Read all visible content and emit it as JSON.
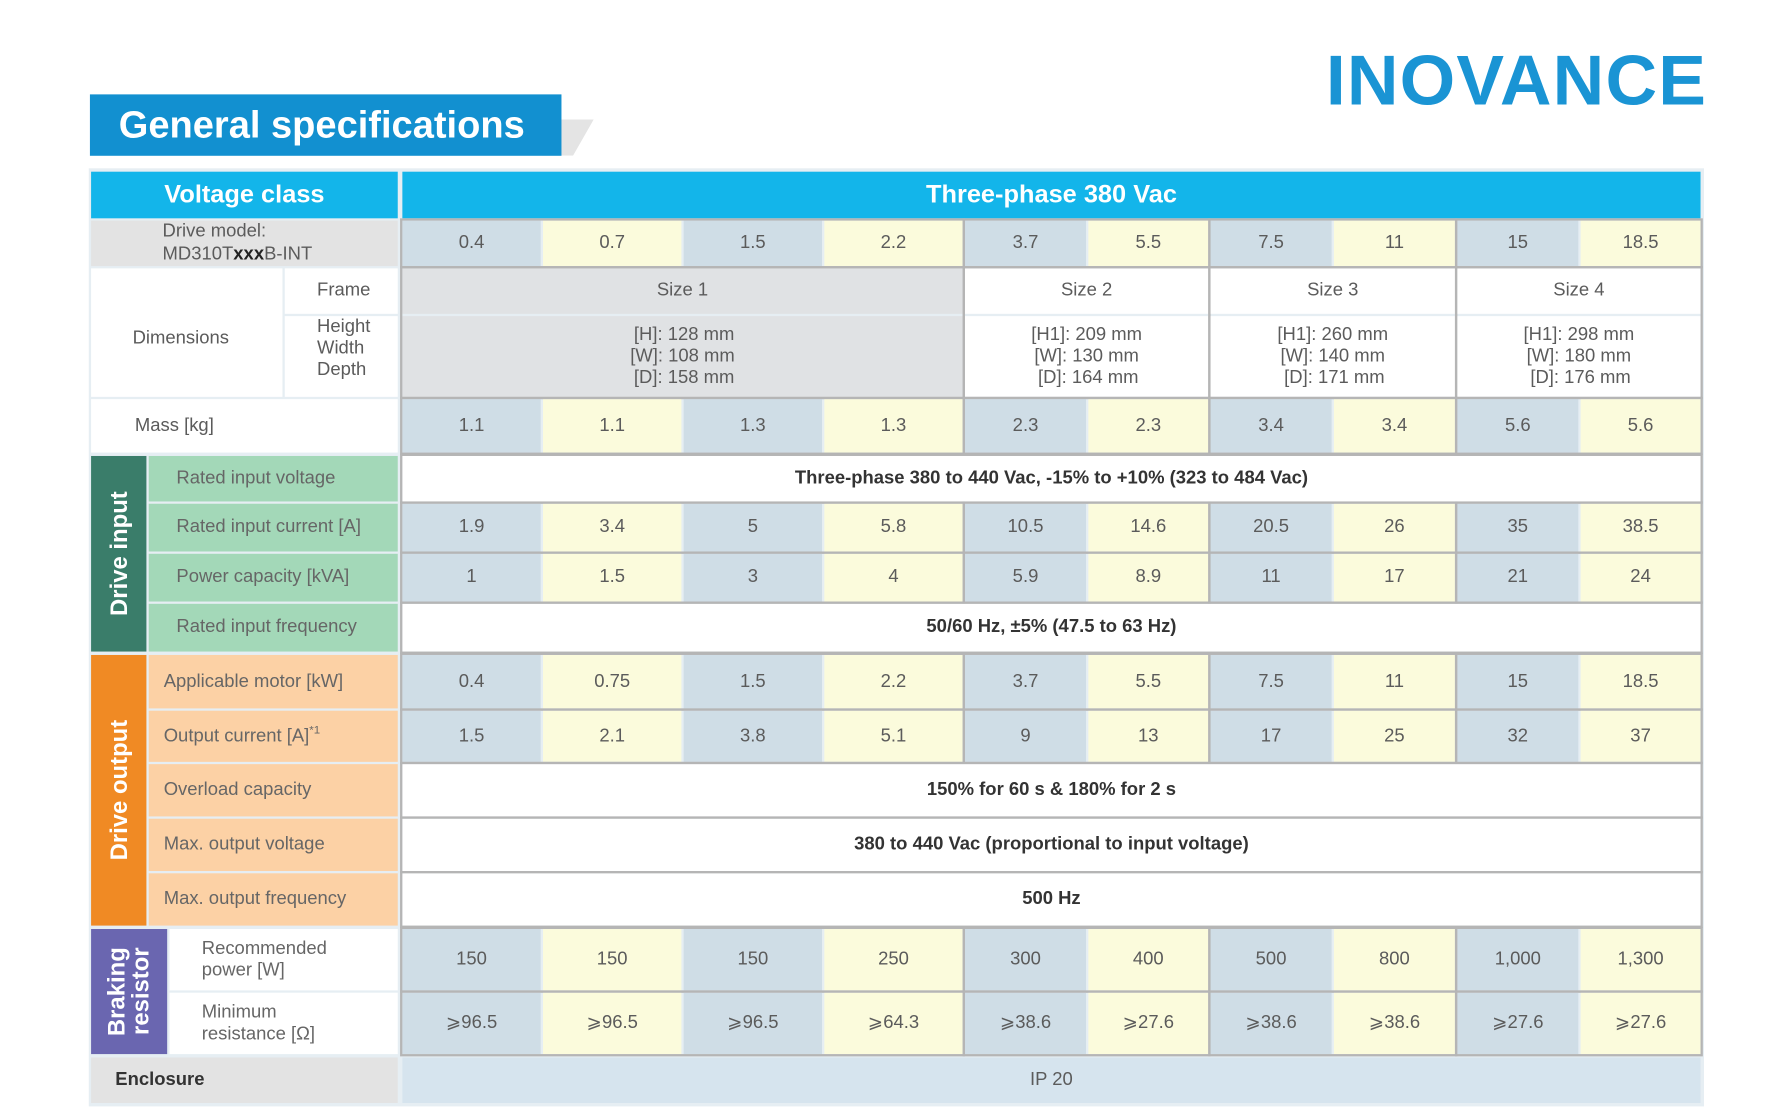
{
  "header": {
    "title": "General specifications",
    "logo": "INOVANCE"
  },
  "table": {
    "voltage_class": {
      "label": "Voltage class",
      "value": "Three-phase 380 Vac"
    },
    "drive_model": {
      "label": "Drive model:",
      "model": [
        "MD310T",
        "xxx",
        "B-INT"
      ],
      "values": [
        "0.4",
        "0.7",
        "1.5",
        "2.2",
        "3.7",
        "5.5",
        "7.5",
        "11",
        "15",
        "18.5"
      ]
    },
    "dimensions": {
      "label": "Dimensions",
      "frame": {
        "label": "Frame",
        "values": [
          "Size 1",
          "Size 2",
          "Size 3",
          "Size 4"
        ]
      },
      "size": {
        "labels": [
          "Height",
          "Width",
          "Depth"
        ],
        "values": [
          [
            "[H]:  128 mm",
            "[W]: 108 mm",
            "[D]:  158 mm"
          ],
          [
            "[H1]: 209 mm",
            "[W]: 130 mm",
            "[D]: 164 mm"
          ],
          [
            "[H1]: 260 mm",
            "[W]: 140 mm",
            "[D]: 171 mm"
          ],
          [
            "[H1]: 298 mm",
            "[W]: 180 mm",
            "[D]: 176 mm"
          ]
        ]
      }
    },
    "mass": {
      "label": "Mass [kg]",
      "values": [
        "1.1",
        "1.1",
        "1.3",
        "1.3",
        "2.3",
        "2.3",
        "3.4",
        "3.4",
        "5.6",
        "5.6"
      ]
    },
    "sections": [
      {
        "name": "Drive input",
        "rows": [
          {
            "label": "Rated input voltage",
            "value": "Three-phase 380 to 440 Vac, -15% to +10% (323 to 484 Vac)"
          },
          {
            "label": "Rated input current [A]",
            "values": [
              "1.9",
              "3.4",
              "5",
              "5.8",
              "10.5",
              "14.6",
              "20.5",
              "26",
              "35",
              "38.5"
            ]
          },
          {
            "label": "Power capacity [kVA]",
            "values": [
              "1",
              "1.5",
              "3",
              "4",
              "5.9",
              "8.9",
              "11",
              "17",
              "21",
              "24"
            ]
          },
          {
            "label": "Rated input frequency",
            "value": "50/60 Hz, ±5% (47.5 to 63 Hz)"
          }
        ]
      },
      {
        "name": "Drive output",
        "rows": [
          {
            "label": "Applicable motor [kW]",
            "values": [
              "0.4",
              "0.75",
              "1.5",
              "2.2",
              "3.7",
              "5.5",
              "7.5",
              "11",
              "15",
              "18.5"
            ]
          },
          {
            "label": "Output current [A]",
            "note": "*1",
            "values": [
              "1.5",
              "2.1",
              "3.8",
              "5.1",
              "9",
              "13",
              "17",
              "25",
              "32",
              "37"
            ]
          },
          {
            "label": "Overload capacity",
            "value": "150% for 60 s & 180% for 2 s"
          },
          {
            "label": "Max. output voltage",
            "value": "380 to 440 Vac (proportional to input voltage)"
          },
          {
            "label": "Max. output frequency",
            "value": "500 Hz"
          }
        ]
      },
      {
        "name": [
          "Braking",
          "resistor"
        ],
        "rows": [
          {
            "label": "Recommended power [W]",
            "values": [
              "150",
              "150",
              "150",
              "250",
              "300",
              "400",
              "500",
              "800",
              "1,000",
              "1,300"
            ]
          },
          {
            "label": "Minimum resistance [Ω]",
            "values": [
              "⩾96.5",
              "⩾96.5",
              "⩾96.5",
              "⩾64.3",
              "⩾38.6",
              "⩾27.6",
              "⩾38.6",
              "⩾38.6",
              "⩾27.6",
              "⩾27.6"
            ]
          }
        ]
      }
    ],
    "enclosure": {
      "label": "Enclosure",
      "value": "IP 20"
    }
  }
}
